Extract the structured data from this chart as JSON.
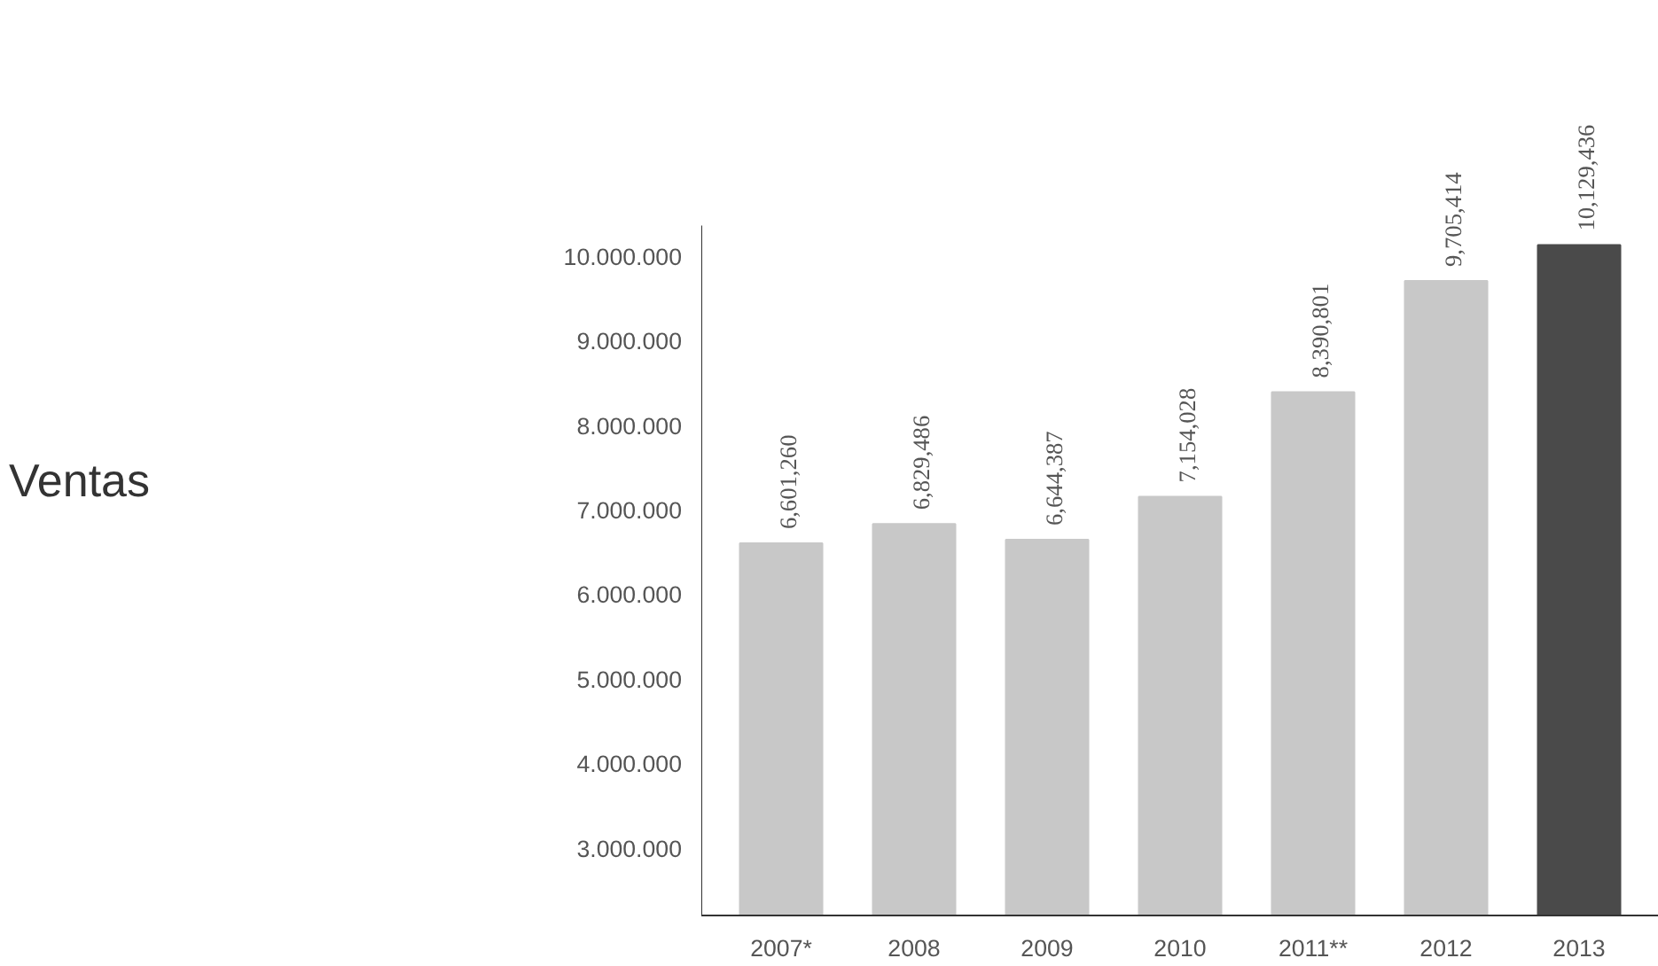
{
  "chart_data": {
    "type": "bar",
    "title": "Ventas",
    "categories": [
      "2007*",
      "2008",
      "2009",
      "2010",
      "2011**",
      "2012",
      "2013"
    ],
    "values": [
      6601260,
      6829486,
      6644387,
      7154028,
      8390801,
      9705414,
      10129436
    ],
    "colors": [
      "#c8c8c8",
      "#c8c8c8",
      "#c8c8c8",
      "#c8c8c8",
      "#c8c8c8",
      "#c8c8c8",
      "#4a4a4a"
    ],
    "value_labels": [
      "6,601,260",
      "6,829,486",
      "6,644,387",
      "7,154,028",
      "8,390,801",
      "9,705,414",
      "10,129,436"
    ],
    "ylim": [
      2200000,
      10360000
    ],
    "yticks": [
      {
        "value": 3000000,
        "label": "3.000.000"
      },
      {
        "value": 4000000,
        "label": "4.000.000"
      },
      {
        "value": 5000000,
        "label": "5.000.000"
      },
      {
        "value": 6000000,
        "label": "6.000.000"
      },
      {
        "value": 7000000,
        "label": "7.000.000"
      },
      {
        "value": 8000000,
        "label": "8.000.000"
      },
      {
        "value": 9000000,
        "label": "9.000.000"
      },
      {
        "value": 10000000,
        "label": "10.000.000"
      }
    ],
    "grid": false
  }
}
